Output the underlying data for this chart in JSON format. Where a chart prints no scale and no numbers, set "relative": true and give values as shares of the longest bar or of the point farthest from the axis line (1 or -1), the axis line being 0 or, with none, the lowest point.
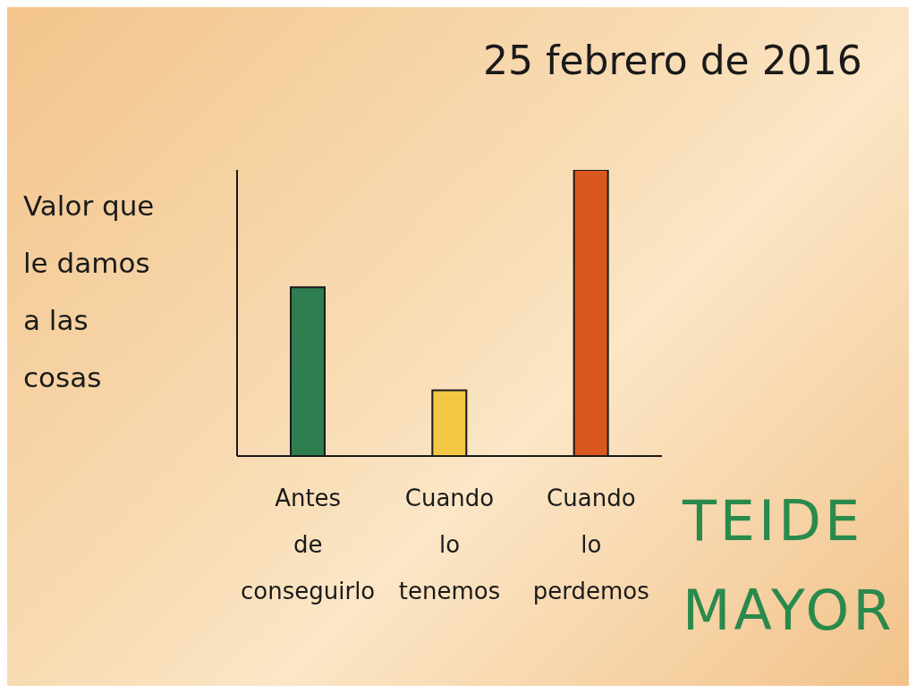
{
  "chart_data": {
    "type": "bar",
    "title": "25 febrero de 2016",
    "ylabel": "Valor que le damos a las cosas",
    "categories": [
      "Antes de conseguirlo",
      "Cuando lo tenemos",
      "Cuando lo perdemos"
    ],
    "values": [
      0.59,
      0.23,
      1
    ],
    "colors": [
      "#2e7d4f",
      "#f2c744",
      "#d9581f"
    ],
    "relative": true,
    "annotations": [
      "TEIDE MAYOR"
    ]
  }
}
